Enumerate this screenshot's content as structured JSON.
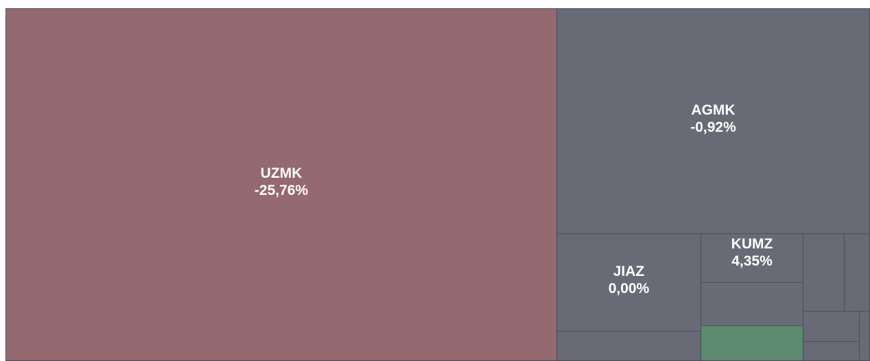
{
  "chart_data": {
    "type": "treemap",
    "categories": [
      "UZMK",
      "AGMK",
      "JIAZ",
      "KUMZ"
    ],
    "values": [
      -25.76,
      -0.92,
      0,
      4.35
    ],
    "value_labels": [
      "-25,76%",
      "-0,92%",
      "0,00%",
      "4,35%"
    ]
  }
}
